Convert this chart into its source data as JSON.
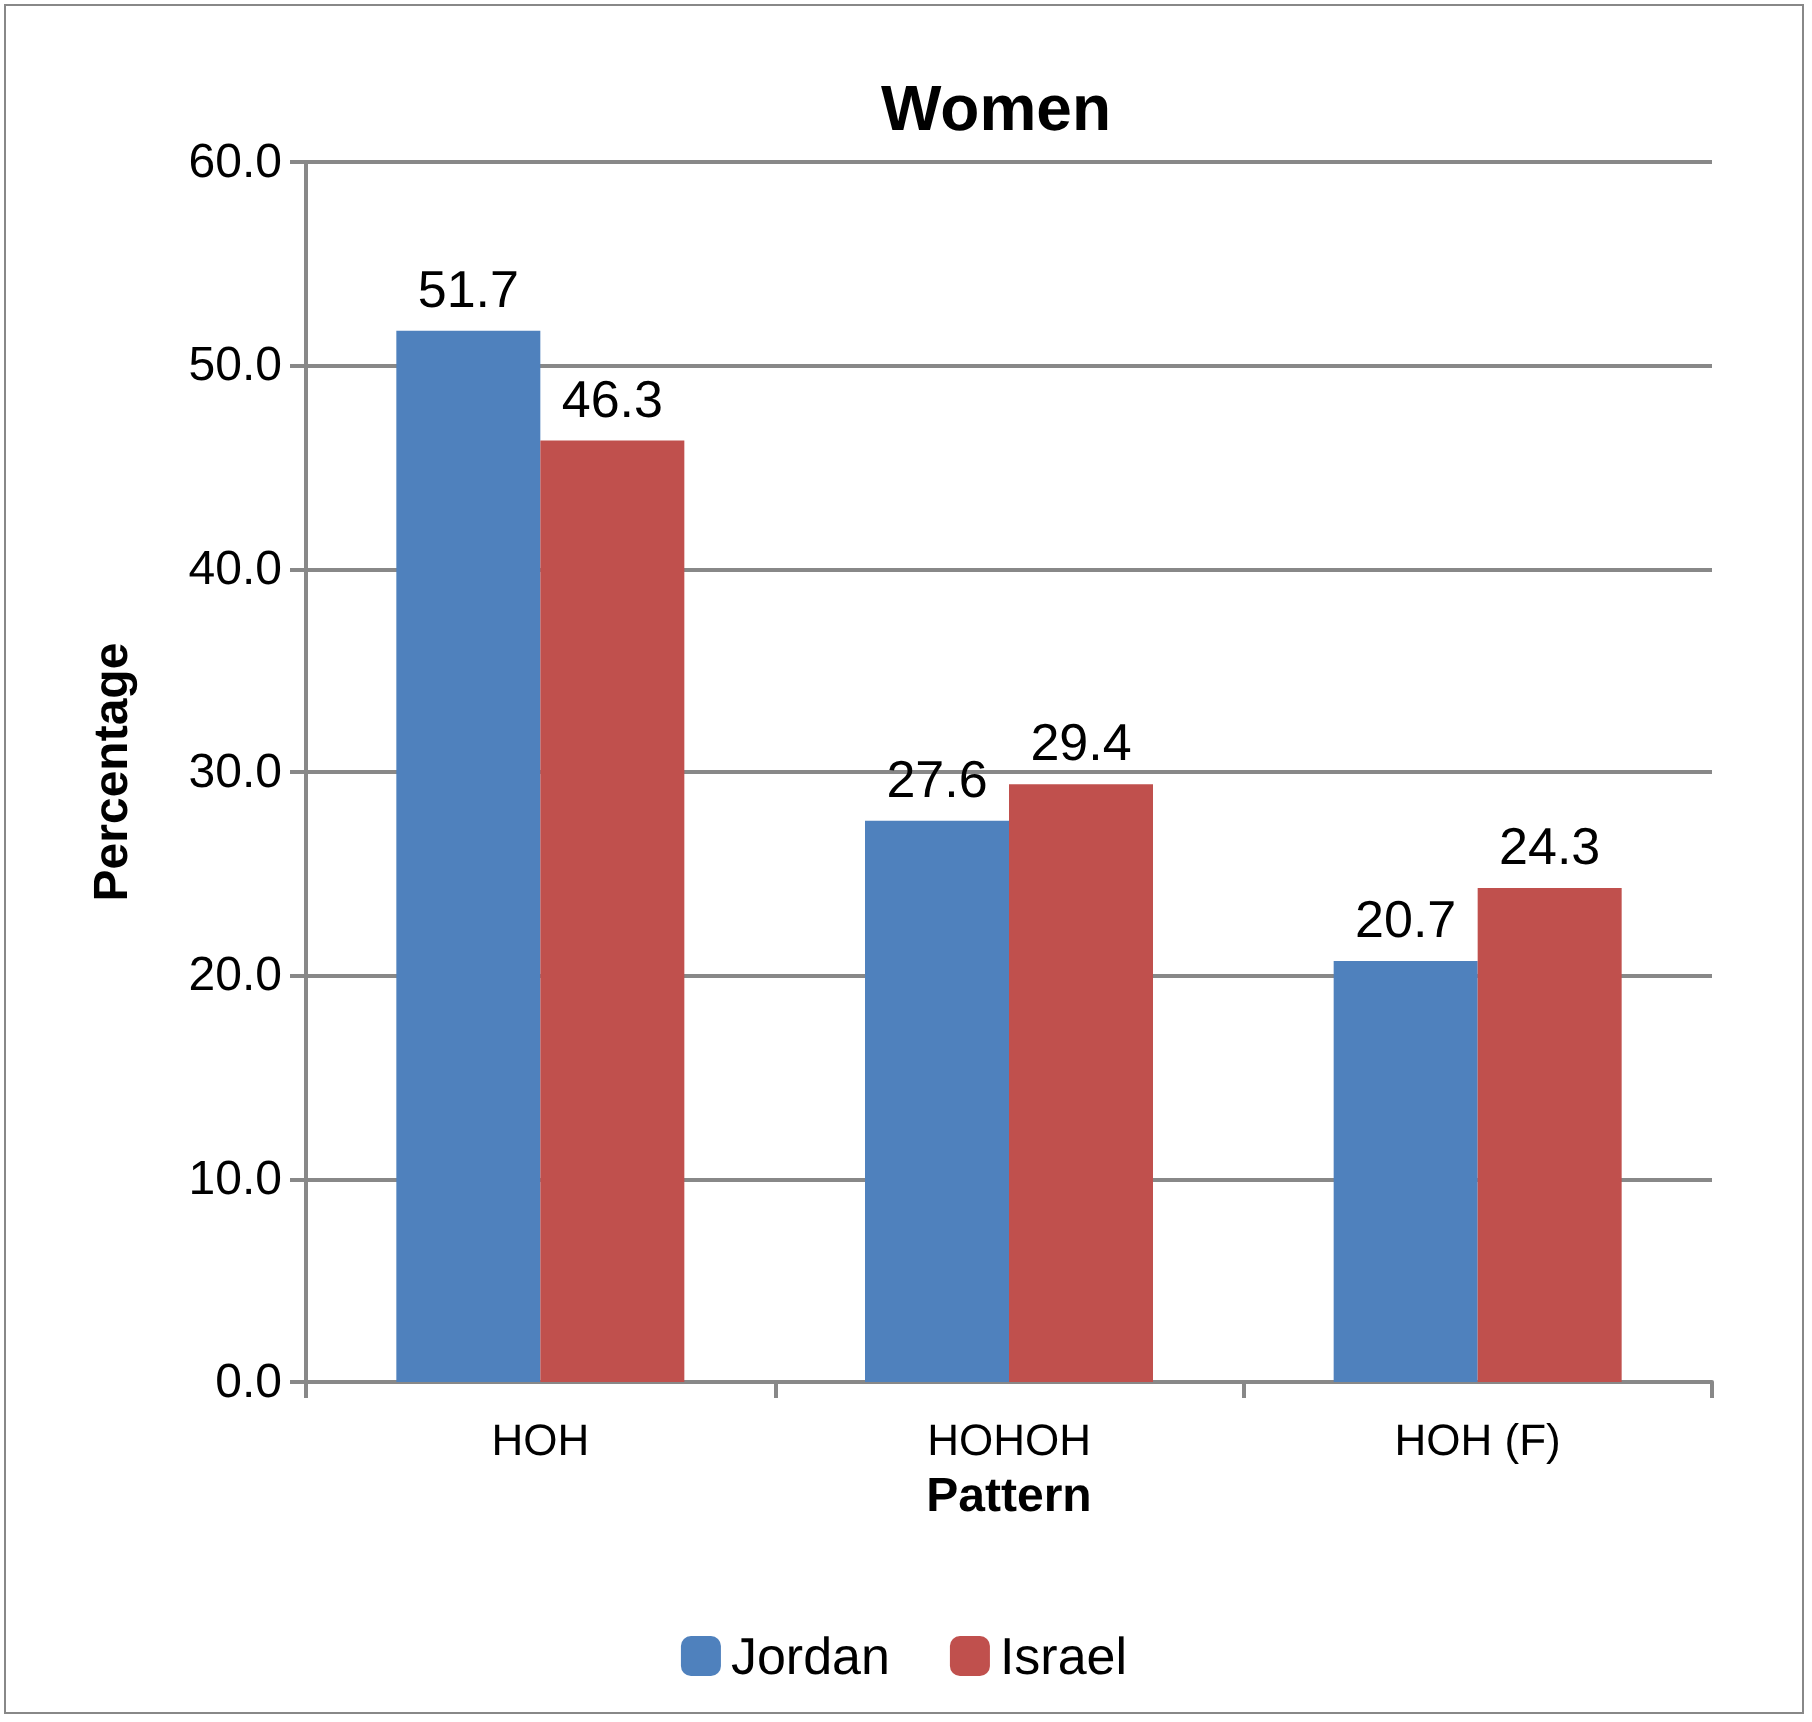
{
  "chart_data": {
    "type": "bar",
    "title": "Women",
    "xlabel": "Pattern",
    "ylabel": "Percentage",
    "categories": [
      "HOH",
      "HOHOH",
      "HOH (F)"
    ],
    "series": [
      {
        "name": "Jordan",
        "color": "#4f81bd",
        "values": [
          51.7,
          27.6,
          20.7
        ]
      },
      {
        "name": "Israel",
        "color": "#c0504d",
        "values": [
          46.3,
          29.4,
          24.3
        ]
      }
    ],
    "ylim": [
      0,
      60
    ],
    "yticks": [
      {
        "value": 0,
        "label": "0.0"
      },
      {
        "value": 10,
        "label": "10.0"
      },
      {
        "value": 20,
        "label": "20.0"
      },
      {
        "value": 30,
        "label": "30.0"
      },
      {
        "value": 40,
        "label": "40.0"
      },
      {
        "value": 50,
        "label": "50.0"
      },
      {
        "value": 60,
        "label": "60.0"
      }
    ],
    "grid": "y",
    "legend": "bottom",
    "data_labels": true
  }
}
